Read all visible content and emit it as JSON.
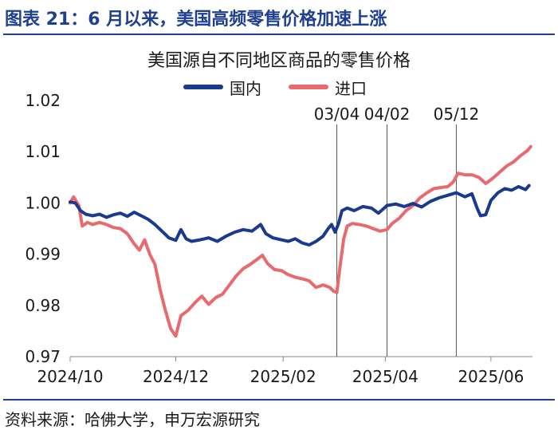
{
  "header": {
    "caption": "图表 21：6 月以来，美国高频零售价格加速上涨"
  },
  "footer": {
    "source": "资料来源：哈佛大学，申万宏源研究"
  },
  "chart_data": {
    "type": "line",
    "title": "美国源自不同地区商品的零售价格",
    "xlabel": "",
    "ylabel": "",
    "ylim": [
      0.97,
      1.02
    ],
    "yticks": [
      0.97,
      0.98,
      0.99,
      1.0,
      1.01,
      1.02
    ],
    "ytick_labels": [
      "0.97",
      "0.98",
      "0.99",
      "1.00",
      "1.01",
      "1.02"
    ],
    "xlim": [
      "2024-10-01",
      "2025-06-25"
    ],
    "xticks": [
      "2024-10-01",
      "2024-12-01",
      "2025-02-01",
      "2025-04-01",
      "2025-06-01"
    ],
    "xtick_labels": [
      "2024/10",
      "2024/12",
      "2025/02",
      "2025/04",
      "2025/06"
    ],
    "grid": false,
    "legend_position": "top-center",
    "annotations": [
      {
        "x": "2025-03-04",
        "label": "03/04"
      },
      {
        "x": "2025-04-02",
        "label": "04/02"
      },
      {
        "x": "2025-05-12",
        "label": "05/12"
      }
    ],
    "series": [
      {
        "name": "国内",
        "color": "#1a3a8f",
        "points": [
          [
            "2024-10-01",
            1.0002
          ],
          [
            "2024-10-04",
            1.0
          ],
          [
            "2024-10-07",
            0.9985
          ],
          [
            "2024-10-10",
            0.9978
          ],
          [
            "2024-10-14",
            0.9975
          ],
          [
            "2024-10-18",
            0.9978
          ],
          [
            "2024-10-22",
            0.9972
          ],
          [
            "2024-10-26",
            0.9977
          ],
          [
            "2024-10-30",
            0.998
          ],
          [
            "2024-11-03",
            0.9974
          ],
          [
            "2024-11-07",
            0.9982
          ],
          [
            "2024-11-11",
            0.9975
          ],
          [
            "2024-11-15",
            0.9968
          ],
          [
            "2024-11-19",
            0.9958
          ],
          [
            "2024-11-23",
            0.9945
          ],
          [
            "2024-11-27",
            0.9932
          ],
          [
            "2024-12-01",
            0.9927
          ],
          [
            "2024-12-04",
            0.9948
          ],
          [
            "2024-12-07",
            0.993
          ],
          [
            "2024-12-10",
            0.9925
          ],
          [
            "2024-12-15",
            0.9928
          ],
          [
            "2024-12-20",
            0.9932
          ],
          [
            "2024-12-25",
            0.9925
          ],
          [
            "2024-12-30",
            0.9935
          ],
          [
            "2025-01-04",
            0.9943
          ],
          [
            "2025-01-09",
            0.9948
          ],
          [
            "2025-01-14",
            0.9945
          ],
          [
            "2025-01-19",
            0.9958
          ],
          [
            "2025-01-22",
            0.994
          ],
          [
            "2025-01-26",
            0.9932
          ],
          [
            "2025-01-31",
            0.9928
          ],
          [
            "2025-02-04",
            0.9925
          ],
          [
            "2025-02-08",
            0.993
          ],
          [
            "2025-02-12",
            0.9922
          ],
          [
            "2025-02-16",
            0.9918
          ],
          [
            "2025-02-20",
            0.9925
          ],
          [
            "2025-02-24",
            0.9935
          ],
          [
            "2025-02-27",
            0.995
          ],
          [
            "2025-03-01",
            0.9958
          ],
          [
            "2025-03-03",
            0.9943
          ],
          [
            "2025-03-05",
            0.996
          ],
          [
            "2025-03-07",
            0.9985
          ],
          [
            "2025-03-10",
            0.999
          ],
          [
            "2025-03-14",
            0.9985
          ],
          [
            "2025-03-19",
            0.9993
          ],
          [
            "2025-03-24",
            0.999
          ],
          [
            "2025-03-28",
            0.998
          ],
          [
            "2025-04-02",
            0.9995
          ],
          [
            "2025-04-07",
            0.9998
          ],
          [
            "2025-04-12",
            0.9993
          ],
          [
            "2025-04-17",
            0.9999
          ],
          [
            "2025-04-22",
            0.9992
          ],
          [
            "2025-04-27",
            1.0003
          ],
          [
            "2025-05-02",
            1.001
          ],
          [
            "2025-05-07",
            1.0015
          ],
          [
            "2025-05-12",
            1.002
          ],
          [
            "2025-05-17",
            1.0012
          ],
          [
            "2025-05-21",
            1.0018
          ],
          [
            "2025-05-24",
            0.999
          ],
          [
            "2025-05-26",
            0.9975
          ],
          [
            "2025-05-29",
            0.9977
          ],
          [
            "2025-06-01",
            1.0005
          ],
          [
            "2025-06-05",
            1.002
          ],
          [
            "2025-06-09",
            1.0028
          ],
          [
            "2025-06-13",
            1.0025
          ],
          [
            "2025-06-17",
            1.0032
          ],
          [
            "2025-06-21",
            1.0026
          ],
          [
            "2025-06-23",
            1.0034
          ]
        ]
      },
      {
        "name": "进口",
        "color": "#e86a6e",
        "points": [
          [
            "2024-10-01",
            1.0
          ],
          [
            "2024-10-03",
            1.0012
          ],
          [
            "2024-10-06",
            0.9995
          ],
          [
            "2024-10-08",
            0.9955
          ],
          [
            "2024-10-11",
            0.9962
          ],
          [
            "2024-10-14",
            0.9958
          ],
          [
            "2024-10-18",
            0.9962
          ],
          [
            "2024-10-22",
            0.9958
          ],
          [
            "2024-10-26",
            0.9952
          ],
          [
            "2024-10-30",
            0.995
          ],
          [
            "2024-11-03",
            0.994
          ],
          [
            "2024-11-07",
            0.992
          ],
          [
            "2024-11-10",
            0.9908
          ],
          [
            "2024-11-13",
            0.9928
          ],
          [
            "2024-11-16",
            0.99
          ],
          [
            "2024-11-19",
            0.988
          ],
          [
            "2024-11-22",
            0.983
          ],
          [
            "2024-11-25",
            0.979
          ],
          [
            "2024-11-28",
            0.9755
          ],
          [
            "2024-12-01",
            0.974
          ],
          [
            "2024-12-04",
            0.978
          ],
          [
            "2024-12-08",
            0.979
          ],
          [
            "2024-12-12",
            0.9805
          ],
          [
            "2024-12-16",
            0.9818
          ],
          [
            "2024-12-20",
            0.9802
          ],
          [
            "2024-12-24",
            0.9815
          ],
          [
            "2024-12-28",
            0.9822
          ],
          [
            "2025-01-01",
            0.984
          ],
          [
            "2025-01-05",
            0.9858
          ],
          [
            "2025-01-09",
            0.9872
          ],
          [
            "2025-01-13",
            0.988
          ],
          [
            "2025-01-17",
            0.989
          ],
          [
            "2025-01-20",
            0.9898
          ],
          [
            "2025-01-23",
            0.9882
          ],
          [
            "2025-01-27",
            0.987
          ],
          [
            "2025-01-31",
            0.9868
          ],
          [
            "2025-02-04",
            0.986
          ],
          [
            "2025-02-08",
            0.9855
          ],
          [
            "2025-02-12",
            0.9852
          ],
          [
            "2025-02-16",
            0.9848
          ],
          [
            "2025-02-20",
            0.9835
          ],
          [
            "2025-02-24",
            0.984
          ],
          [
            "2025-02-28",
            0.9835
          ],
          [
            "2025-03-02",
            0.9828
          ],
          [
            "2025-03-04",
            0.9825
          ],
          [
            "2025-03-06",
            0.988
          ],
          [
            "2025-03-08",
            0.993
          ],
          [
            "2025-03-10",
            0.9955
          ],
          [
            "2025-03-13",
            0.996
          ],
          [
            "2025-03-17",
            0.9958
          ],
          [
            "2025-03-21",
            0.9955
          ],
          [
            "2025-03-25",
            0.995
          ],
          [
            "2025-03-29",
            0.9945
          ],
          [
            "2025-04-02",
            0.9948
          ],
          [
            "2025-04-05",
            0.996
          ],
          [
            "2025-04-09",
            0.997
          ],
          [
            "2025-04-13",
            0.9985
          ],
          [
            "2025-04-17",
            0.9995
          ],
          [
            "2025-04-21",
            1.001
          ],
          [
            "2025-04-25",
            1.002
          ],
          [
            "2025-04-29",
            1.0028
          ],
          [
            "2025-05-03",
            1.003
          ],
          [
            "2025-05-07",
            1.0032
          ],
          [
            "2025-05-10",
            1.004
          ],
          [
            "2025-05-13",
            1.0058
          ],
          [
            "2025-05-17",
            1.0055
          ],
          [
            "2025-05-21",
            1.0055
          ],
          [
            "2025-05-25",
            1.005
          ],
          [
            "2025-05-29",
            1.0038
          ],
          [
            "2025-06-02",
            1.0048
          ],
          [
            "2025-06-06",
            1.006
          ],
          [
            "2025-06-10",
            1.0072
          ],
          [
            "2025-06-14",
            1.008
          ],
          [
            "2025-06-18",
            1.0092
          ],
          [
            "2025-06-22",
            1.0102
          ],
          [
            "2025-06-24",
            1.011
          ]
        ]
      }
    ]
  }
}
